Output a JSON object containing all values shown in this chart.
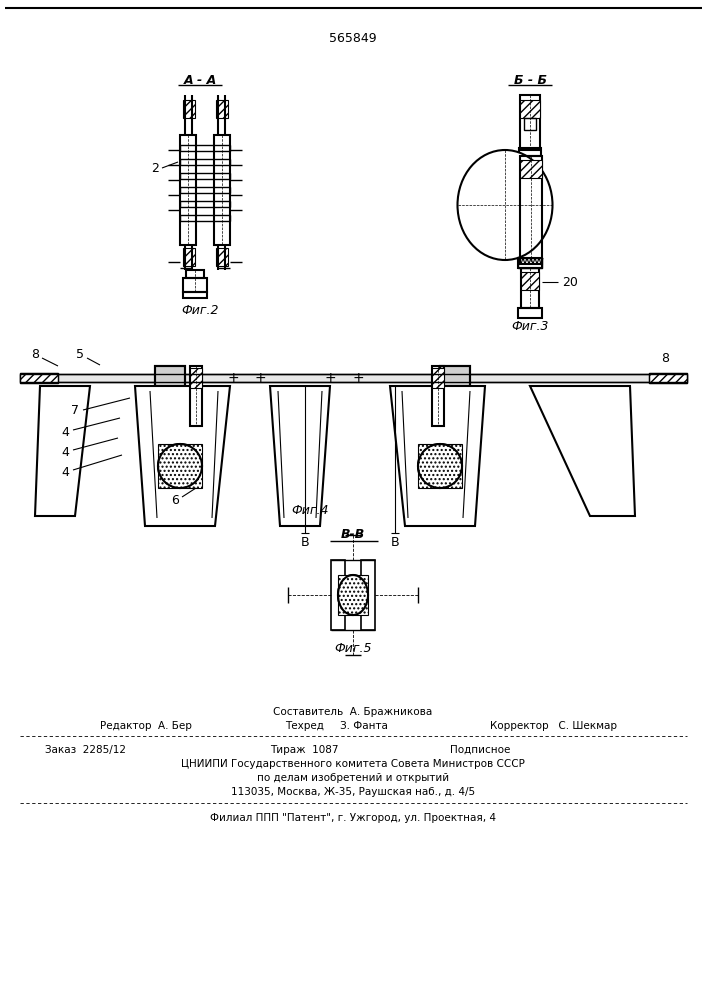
{
  "patent_number": "565849",
  "background_color": "#ffffff",
  "line_color": "#000000",
  "fig_labels": {
    "fig2": "Фиг.2",
    "fig3": "Фиг.3",
    "fig4": "Фиг.4",
    "fig5": "Фиг.5"
  },
  "section_labels": {
    "AA": "A - A",
    "BB_top": "Б - Б",
    "BB_bot": "В-В"
  },
  "part_labels": {
    "2": "2",
    "4": "4",
    "5": "5",
    "6": "6",
    "7": "7",
    "8": "8",
    "20": "20",
    "B": "В"
  },
  "footer": {
    "sestavitel": "Составитель  А. Бражникова",
    "redaktor": "Редактор  А. Бер",
    "tehred": "Техред     З. Фанта",
    "korrektor": "Корректор   С. Шекмар",
    "zakaz": "Заказ  2285/12",
    "tirazh": "Тираж  1087",
    "podpisnoe": "Подписное",
    "cniip1": "ЦНИИПИ Государственного комитета Совета Министров СССР",
    "cniip2": "по делам изобретений и открытий",
    "cniip3": "113035, Москва, Ж-35, Раушская наб., д. 4/5",
    "filial": "Филиал ППП \"Патент\", г. Ужгород, ул. Проектная, 4"
  }
}
